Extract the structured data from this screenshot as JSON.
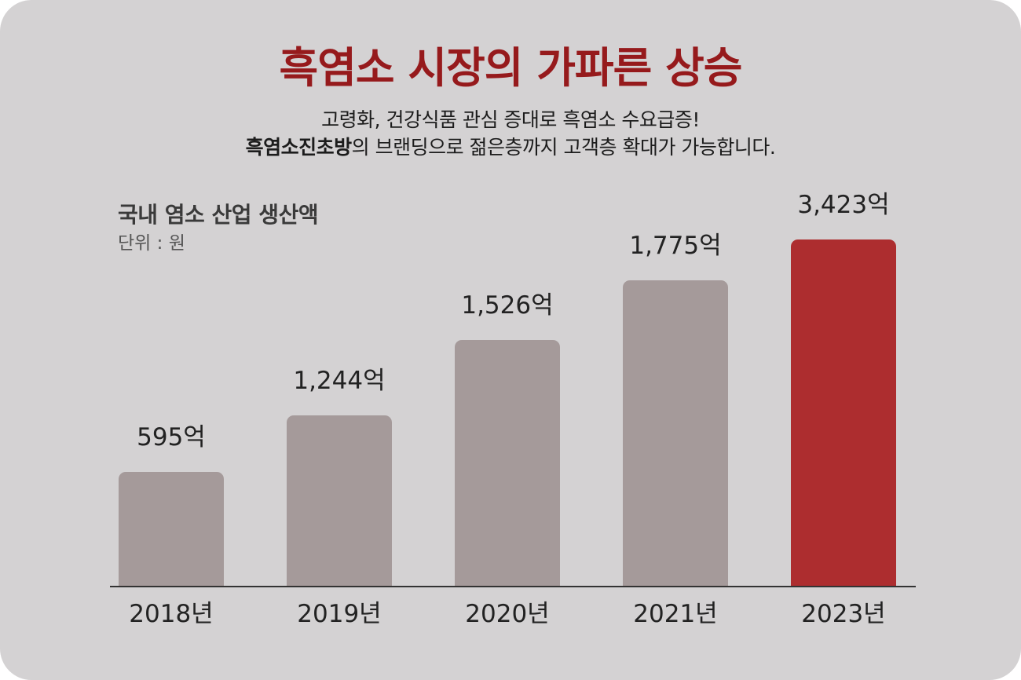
{
  "header": {
    "title": "흑염소 시장의 가파른 상승",
    "subtitle_line1": "고령화, 건강식품 관심 증대로 흑염소 수요급증!",
    "subtitle_line2_bold": "흑염소진초방",
    "subtitle_line2_rest": "의 브랜딩으로 젊은층까지 고객층 확대가 가능합니다."
  },
  "colors": {
    "background": "#d4d2d3",
    "title": "#961a1c",
    "bar_default": "#a59a9a",
    "bar_highlight": "#ad2d2f"
  },
  "chart_data": {
    "type": "bar",
    "title": "국내 염소 산업 생산액",
    "subtitle": "단위 : 원",
    "categories": [
      "2018년",
      "2019년",
      "2020년",
      "2021년",
      "2023년"
    ],
    "values": [
      595,
      1244,
      1526,
      1775,
      3423
    ],
    "value_labels": [
      "595억",
      "1,244억",
      "1,526억",
      "1,775억",
      "3,423억"
    ],
    "unit": "억 원",
    "highlight_index": 4,
    "xlabel": "",
    "ylabel": "",
    "grid": false,
    "legend": null
  }
}
